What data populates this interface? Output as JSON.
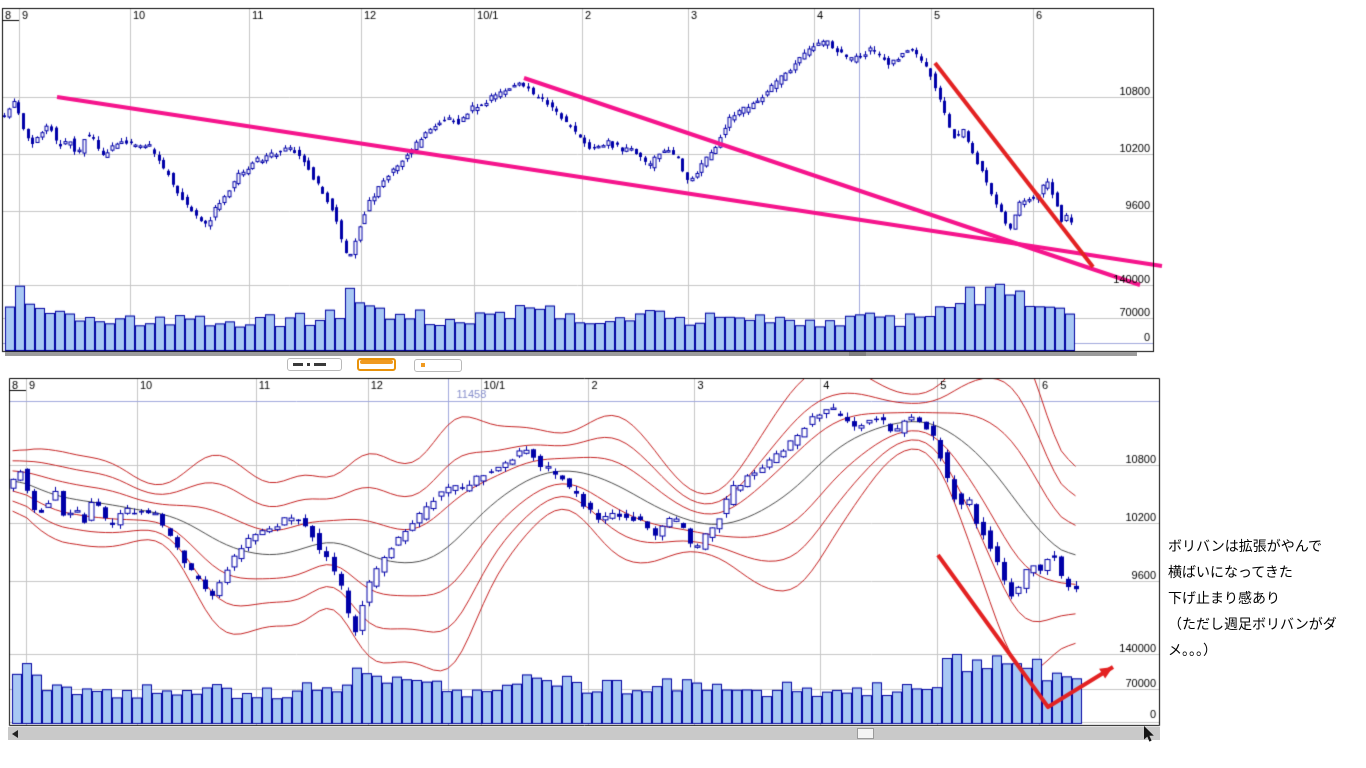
{
  "colors": {
    "candle": "#0000a8",
    "candle_up_fill": "#ffffff",
    "volume_fill": "#a8c8f4",
    "volume_border": "#0000a0",
    "grid": "#c6c6c6",
    "border": "#000000",
    "lavender": "#a0a8dc",
    "level_label_blue": "#8890cc",
    "pink": "#f5148c",
    "red": "#e32222",
    "band_red": "#c42020",
    "ma_gray": "#4a4a4a",
    "label_black": "#000000"
  },
  "note": {
    "lines": [
      "ボリバンは拡張がやんで",
      "横ばいになってきた",
      "下げ止まり感あり",
      "（ただし週足ボリバンがダ",
      "メ。。。）"
    ]
  },
  "chart_data": {
    "type": "candlestick",
    "shared": {
      "data_end_t": 0.9305,
      "months": [
        {
          "label": "8",
          "t": 0
        },
        {
          "label": "9",
          "t": 0.01477
        },
        {
          "label": "10",
          "t": 0.1112
        },
        {
          "label": "11",
          "t": 0.2146
        },
        {
          "label": "12",
          "t": 0.3119
        },
        {
          "label": "10/1",
          "t": 0.4101
        },
        {
          "label": "2",
          "t": 0.5039
        },
        {
          "label": "3",
          "t": 0.596
        },
        {
          "label": "4",
          "t": 0.7055
        },
        {
          "label": "5",
          "t": 0.8071
        },
        {
          "label": "6",
          "t": 0.8957
        }
      ],
      "price_anchors": [
        [
          0.0026,
          10589
        ],
        [
          0.013,
          10750
        ],
        [
          0.0191,
          10495
        ],
        [
          0.0269,
          10274
        ],
        [
          0.033,
          10368
        ],
        [
          0.0434,
          10516
        ],
        [
          0.0504,
          10263
        ],
        [
          0.0608,
          10347
        ],
        [
          0.0678,
          10189
        ],
        [
          0.0747,
          10432
        ],
        [
          0.0825,
          10316
        ],
        [
          0.0895,
          10168
        ],
        [
          0.0982,
          10284
        ],
        [
          0.1069,
          10347
        ],
        [
          0.1147,
          10305
        ],
        [
          0.1295,
          10284
        ],
        [
          0.146,
          9979
        ],
        [
          0.159,
          9716
        ],
        [
          0.172,
          9527
        ],
        [
          0.179,
          9442
        ],
        [
          0.1894,
          9663
        ],
        [
          0.2068,
          9979
        ],
        [
          0.2242,
          10137
        ],
        [
          0.2415,
          10221
        ],
        [
          0.2528,
          10263
        ],
        [
          0.2633,
          10137
        ],
        [
          0.2763,
          9874
        ],
        [
          0.2893,
          9611
        ],
        [
          0.2971,
          9295
        ],
        [
          0.3032,
          9063
        ],
        [
          0.311,
          9400
        ],
        [
          0.3197,
          9663
        ],
        [
          0.3284,
          9821
        ],
        [
          0.3414,
          10053
        ],
        [
          0.3545,
          10189
        ],
        [
          0.3718,
          10453
        ],
        [
          0.3875,
          10579
        ],
        [
          0.3979,
          10537
        ],
        [
          0.4109,
          10684
        ],
        [
          0.424,
          10768
        ],
        [
          0.437,
          10853
        ],
        [
          0.4518,
          10979
        ],
        [
          0.4631,
          10821
        ],
        [
          0.4761,
          10737
        ],
        [
          0.4892,
          10558
        ],
        [
          0.5022,
          10400
        ],
        [
          0.5152,
          10242
        ],
        [
          0.5282,
          10316
        ],
        [
          0.5413,
          10242
        ],
        [
          0.5543,
          10221
        ],
        [
          0.563,
          10053
        ],
        [
          0.5734,
          10221
        ],
        [
          0.5821,
          10242
        ],
        [
          0.5908,
          10105
        ],
        [
          0.5977,
          9905
        ],
        [
          0.6064,
          10032
        ],
        [
          0.6194,
          10242
        ],
        [
          0.6325,
          10558
        ],
        [
          0.6455,
          10663
        ],
        [
          0.6585,
          10768
        ],
        [
          0.6716,
          10926
        ],
        [
          0.6846,
          11063
        ],
        [
          0.6976,
          11242
        ],
        [
          0.7089,
          11347
        ],
        [
          0.7176,
          11379
        ],
        [
          0.728,
          11274
        ],
        [
          0.7385,
          11190
        ],
        [
          0.7472,
          11242
        ],
        [
          0.7558,
          11295
        ],
        [
          0.7645,
          11221
        ],
        [
          0.7732,
          11137
        ],
        [
          0.7819,
          11242
        ],
        [
          0.7906,
          11295
        ],
        [
          0.7993,
          11190
        ],
        [
          0.8071,
          11084
        ],
        [
          0.8149,
          10821
        ],
        [
          0.8236,
          10505
        ],
        [
          0.8306,
          10347
        ],
        [
          0.8366,
          10453
        ],
        [
          0.8436,
          10221
        ],
        [
          0.8505,
          10084
        ],
        [
          0.8575,
          9905
        ],
        [
          0.8644,
          9716
        ],
        [
          0.8714,
          9527
        ],
        [
          0.8775,
          9421
        ],
        [
          0.8844,
          9642
        ],
        [
          0.8914,
          9758
        ],
        [
          0.8975,
          9695
        ],
        [
          0.9036,
          9800
        ],
        [
          0.9096,
          9947
        ],
        [
          0.9166,
          9716
        ],
        [
          0.9218,
          9495
        ],
        [
          0.9261,
          9558
        ],
        [
          0.9296,
          9484
        ]
      ],
      "volume_anchors": [
        [
          0,
          95000
        ],
        [
          0.013,
          132000
        ],
        [
          0.03,
          80000
        ],
        [
          0.06,
          72000
        ],
        [
          0.1,
          66000
        ],
        [
          0.14,
          66000
        ],
        [
          0.17,
          70000
        ],
        [
          0.21,
          62000
        ],
        [
          0.25,
          68000
        ],
        [
          0.295,
          75000
        ],
        [
          0.305,
          138000
        ],
        [
          0.32,
          95000
        ],
        [
          0.35,
          74000
        ],
        [
          0.4,
          68000
        ],
        [
          0.44,
          78000
        ],
        [
          0.465,
          88000
        ],
        [
          0.5,
          76000
        ],
        [
          0.53,
          72000
        ],
        [
          0.57,
          80000
        ],
        [
          0.6,
          70000
        ],
        [
          0.64,
          66000
        ],
        [
          0.68,
          70000
        ],
        [
          0.72,
          66000
        ],
        [
          0.76,
          70000
        ],
        [
          0.8,
          66000
        ],
        [
          0.815,
          110000
        ],
        [
          0.83,
          120000
        ],
        [
          0.845,
          115000
        ],
        [
          0.863,
          140000
        ],
        [
          0.88,
          125000
        ],
        [
          0.897,
          118000
        ],
        [
          0.91,
          100000
        ],
        [
          0.93,
          88000
        ]
      ]
    },
    "charts": [
      {
        "id": "daily-with-trendlines",
        "price_ticks": [
          10800,
          10200,
          9600
        ],
        "volume_ticks": [
          140000,
          70000
        ],
        "zero_label": "0",
        "crosshair": {
          "t": 0.7446,
          "volume": 16000
        },
        "trendlines": [
          {
            "color": "pink",
            "width": 4,
            "points": [
              [
                0.0478,
                10800
              ],
              [
                1.0078,
                9021
              ]
            ]
          },
          {
            "color": "pink",
            "width": 4,
            "points": [
              [
                0.4535,
                11000
              ],
              [
                0.9887,
                8821
              ]
            ]
          },
          {
            "color": "red",
            "width": 4,
            "points": [
              [
                0.8106,
                11158
              ],
              [
                0.9479,
                9011
              ]
            ]
          }
        ]
      },
      {
        "id": "daily-with-bollinger",
        "price_ticks": [
          10800,
          10200,
          9600
        ],
        "volume_ticks": [
          140000,
          70000,
          0
        ],
        "zero_label": "0",
        "crosshair": {
          "t": 0.3817,
          "price": 11458,
          "label": "11458"
        },
        "bollinger": {
          "window": 16,
          "multipliers": [
            1,
            2,
            3
          ]
        },
        "arrow": {
          "color": "red",
          "width": 4,
          "head": true,
          "points": [
            [
              0.8078,
              9869
            ],
            [
              0.9035,
              8297
            ],
            [
              0.96,
              8711
            ]
          ]
        }
      }
    ]
  }
}
